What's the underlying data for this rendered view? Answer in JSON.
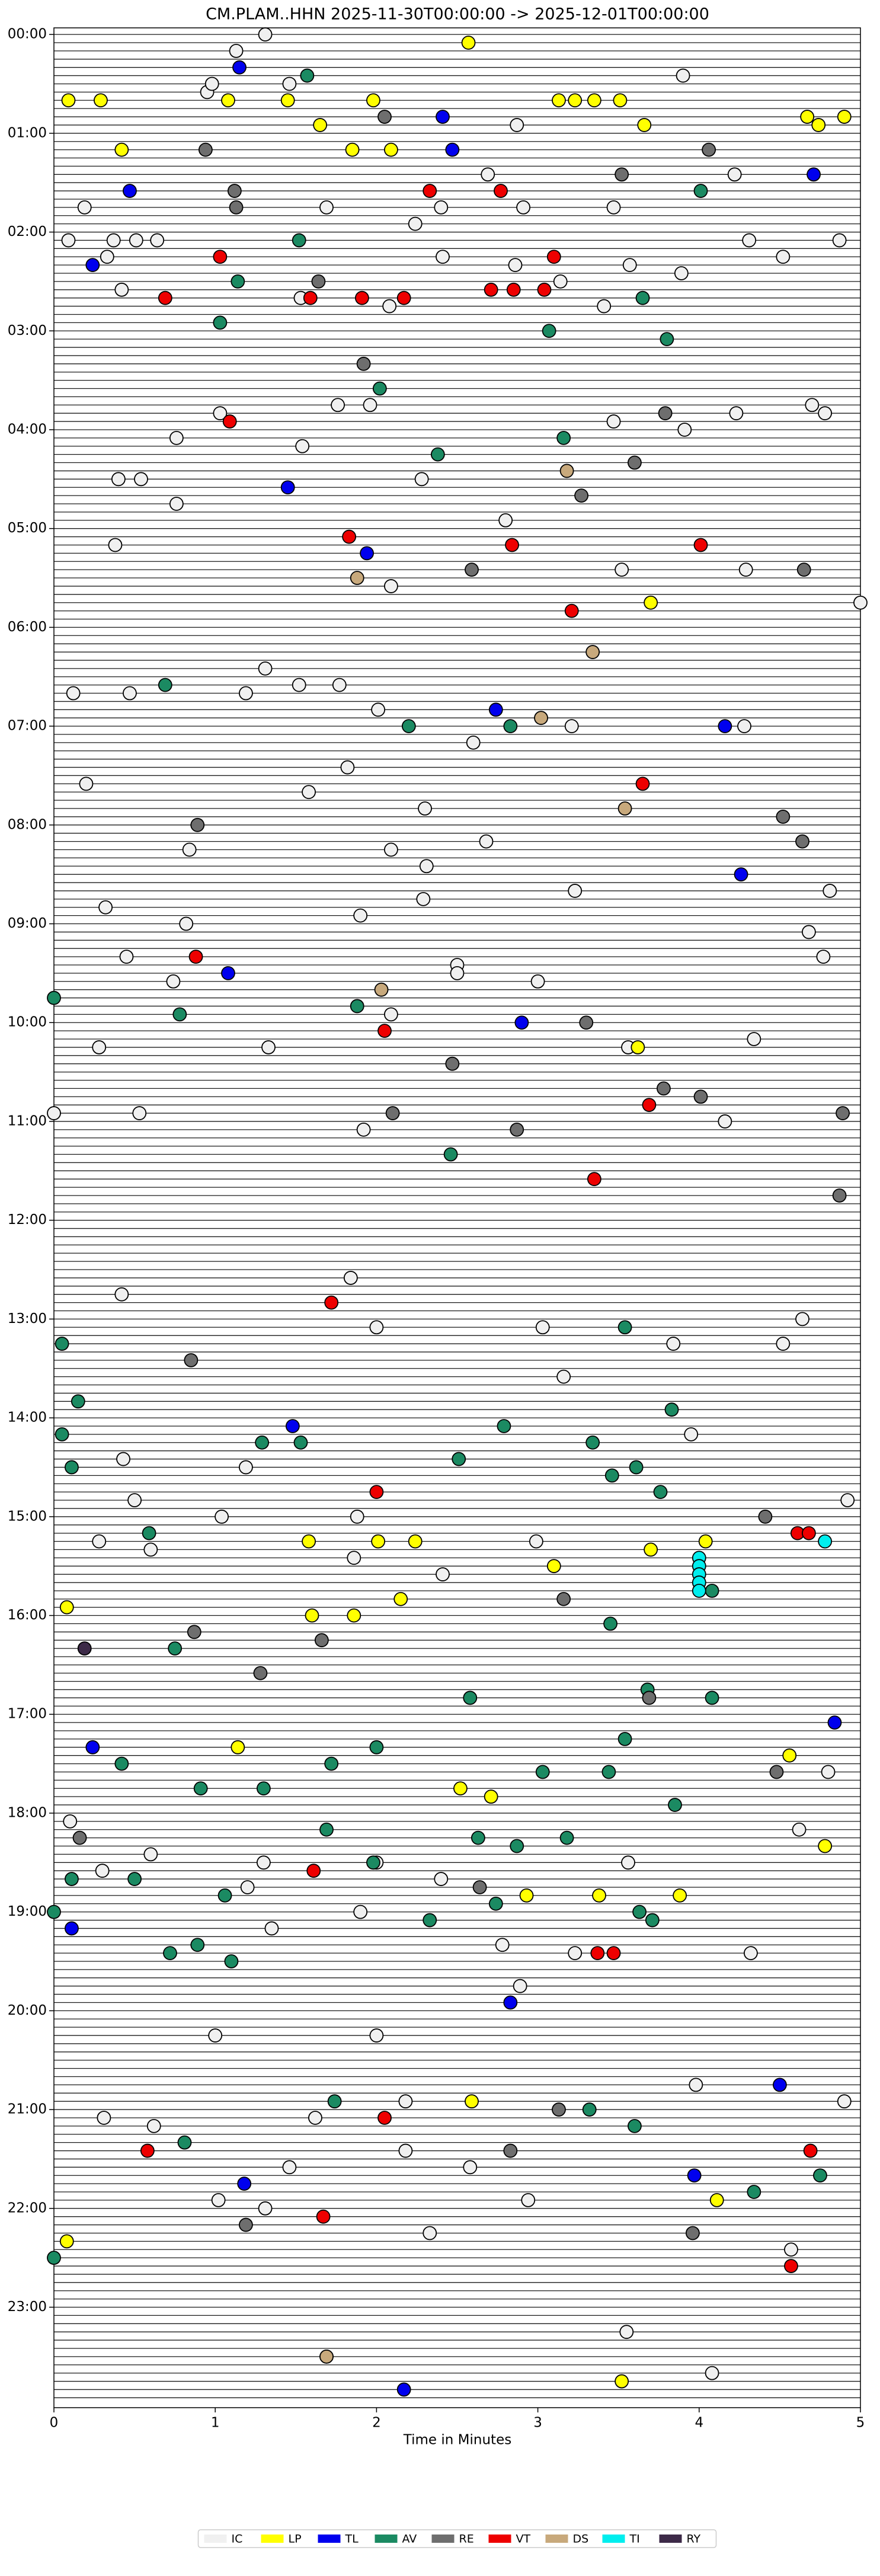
{
  "chart_data": {
    "type": "helicorder",
    "title": "CM.PLAM..HHN  2025-11-30T00:00:00 -> 2025-12-01T00:00:00",
    "xlabel": "Time in Minutes",
    "xlim": [
      0,
      5
    ],
    "xticks": [
      0,
      1,
      2,
      3,
      4,
      5
    ],
    "ylim": [
      -4,
      1441
    ],
    "yticks": [
      {
        "value": 0,
        "label": "00:00"
      },
      {
        "value": 60,
        "label": "01:00"
      },
      {
        "value": 120,
        "label": "02:00"
      },
      {
        "value": 180,
        "label": "03:00"
      },
      {
        "value": 240,
        "label": "04:00"
      },
      {
        "value": 300,
        "label": "05:00"
      },
      {
        "value": 360,
        "label": "06:00"
      },
      {
        "value": 420,
        "label": "07:00"
      },
      {
        "value": 480,
        "label": "08:00"
      },
      {
        "value": 540,
        "label": "09:00"
      },
      {
        "value": 600,
        "label": "10:00"
      },
      {
        "value": 660,
        "label": "11:00"
      },
      {
        "value": 720,
        "label": "12:00"
      },
      {
        "value": 780,
        "label": "13:00"
      },
      {
        "value": 840,
        "label": "14:00"
      },
      {
        "value": 900,
        "label": "15:00"
      },
      {
        "value": 960,
        "label": "16:00"
      },
      {
        "value": 1020,
        "label": "17:00"
      },
      {
        "value": 1080,
        "label": "18:00"
      },
      {
        "value": 1140,
        "label": "19:00"
      },
      {
        "value": 1200,
        "label": "20:00"
      },
      {
        "value": 1260,
        "label": "21:00"
      },
      {
        "value": 1320,
        "label": "22:00"
      },
      {
        "value": 1380,
        "label": "23:00"
      }
    ],
    "legend": "bottom",
    "series": [
      {
        "name": "IC",
        "color": "#f0f0f0",
        "x": [
          1.31,
          1.13,
          0.95,
          0.98,
          1.46,
          3.9,
          2.87,
          2.69,
          2.4,
          2.91,
          3.47,
          4.22,
          0.19,
          0.09,
          0.37,
          0.51,
          0.64,
          0.33,
          0.42,
          1.69,
          1.53,
          2.08,
          2.24,
          2.41,
          2.86,
          3.14,
          3.41,
          3.57,
          3.89,
          4.31,
          4.52,
          4.87,
          1.03,
          0.76,
          1.54,
          1.76,
          1.96,
          3.47,
          3.91,
          4.23,
          4.7,
          4.78,
          0.4,
          0.54,
          2.28,
          2.8,
          0.76,
          0.38,
          3.52,
          4.29,
          2.09,
          5.0,
          1.31,
          1.52,
          0.12,
          0.47,
          1.19,
          1.77,
          2.01,
          3.21,
          4.28,
          2.6,
          1.82,
          0.2,
          1.58,
          2.3,
          2.68,
          0.84,
          2.09,
          2.31,
          3.23,
          4.81,
          2.29,
          0.32,
          1.9,
          0.82,
          4.68,
          0.45,
          4.77,
          2.5,
          2.5,
          0.74,
          3.0,
          2.09,
          0.28,
          1.33,
          3.56,
          4.34,
          0,
          0.53,
          1.92,
          4.16,
          0.42,
          1.84,
          2.0,
          3.03,
          4.64,
          3.84,
          4.52,
          3.16,
          3.95,
          1.19,
          4.92,
          0.5,
          1.04,
          1.88,
          0.28,
          2.99,
          0.6,
          1.86,
          2.41,
          0.43,
          4.8,
          0.1,
          4.62,
          2.4,
          3.56,
          1.3,
          2.0,
          0.3,
          0.6,
          1.2,
          1.9,
          1.35,
          2.78,
          3.23,
          4.32,
          2.89,
          1.0,
          2.0,
          3.98,
          0.31,
          0.62,
          1.62,
          4.9,
          2.18,
          2.18,
          2.58,
          1.46,
          1.02,
          2.94,
          1.31,
          2.33,
          4.57,
          3.55,
          4.08
        ],
        "values": [
          0,
          10,
          35,
          30,
          30,
          25,
          55,
          85,
          105,
          105,
          105,
          85,
          105,
          125,
          125,
          125,
          125,
          135,
          155,
          105,
          160,
          165,
          115,
          135,
          140,
          150,
          165,
          140,
          145,
          125,
          135,
          125,
          230,
          245,
          250,
          225,
          225,
          235,
          240,
          230,
          225,
          230,
          270,
          270,
          270,
          295,
          285,
          310,
          325,
          325,
          335,
          345,
          385,
          395,
          400,
          400,
          400,
          395,
          410,
          420,
          420,
          430,
          445,
          455,
          460,
          470,
          490,
          495,
          495,
          505,
          520,
          520,
          525,
          530,
          535,
          540,
          545,
          560,
          560,
          565,
          570,
          575,
          575,
          595,
          615,
          615,
          615,
          610,
          655,
          655,
          665,
          660,
          765,
          755,
          785,
          785,
          780,
          795,
          795,
          815,
          850,
          870,
          890,
          890,
          900,
          900,
          915,
          915,
          920,
          925,
          935,
          865,
          1055,
          1085,
          1090,
          1120,
          1110,
          1110,
          1110,
          1115,
          1105,
          1125,
          1140,
          1150,
          1160,
          1165,
          1165,
          1185,
          1215,
          1215,
          1245,
          1265,
          1270,
          1265,
          1255,
          1255,
          1285,
          1295,
          1295,
          1315,
          1315,
          1320,
          1335,
          1345,
          1395,
          1420
        ]
      },
      {
        "name": "LP",
        "color": "#ffff00",
        "x": [
          0.09,
          0.29,
          1.08,
          1.45,
          2.57,
          1.65,
          1.98,
          3.13,
          3.23,
          3.35,
          3.51,
          3.66,
          4.67,
          4.74,
          4.9,
          0.42,
          1.85,
          2.09,
          3.7,
          3.62,
          4.04,
          2.01,
          2.24,
          1.58,
          3.1,
          3.7,
          0.08,
          1.6,
          1.86,
          2.15,
          1.14,
          4.56,
          2.52,
          2.71,
          4.78,
          2.93,
          3.38,
          3.88,
          2.59,
          4.11,
          0.08,
          1.69,
          3.52
        ],
        "values": [
          40,
          40,
          40,
          40,
          5,
          55,
          40,
          40,
          40,
          40,
          40,
          55,
          50,
          55,
          50,
          70,
          70,
          70,
          345,
          615,
          915,
          915,
          915,
          915,
          930,
          920,
          955,
          960,
          960,
          950,
          1040,
          1045,
          1065,
          1070,
          1100,
          1130,
          1130,
          1130,
          1255,
          1315,
          1340,
          1410,
          1425
        ]
      },
      {
        "name": "TL",
        "color": "#0000ee",
        "x": [
          1.15,
          2.41,
          2.47,
          0.47,
          4.71,
          0.24,
          1.45,
          1.94,
          2.74,
          4.16,
          4.26,
          1.08,
          2.9,
          1.48,
          0.24,
          4.84,
          0.11,
          2.83,
          4.5,
          3.97,
          1.18,
          2.17
        ],
        "values": [
          20,
          50,
          70,
          95,
          85,
          140,
          275,
          315,
          410,
          420,
          510,
          570,
          600,
          845,
          1040,
          1025,
          1150,
          1195,
          1245,
          1300,
          1305,
          1430
        ]
      },
      {
        "name": "AV",
        "color": "#1b8a62",
        "x": [
          1.57,
          4.01,
          1.52,
          1.14,
          1.03,
          3.65,
          3.8,
          3.07,
          2.02,
          2.38,
          3.16,
          0.69,
          2.2,
          2.83,
          0.0,
          0.78,
          1.88,
          2.46,
          0.05,
          3.54,
          0.15,
          3.83,
          0.05,
          1.29,
          1.53,
          2.79,
          3.34,
          0.11,
          2.51,
          3.46,
          3.61,
          3.76,
          0.59,
          4.08,
          3.45,
          0.75,
          2.58,
          3.68,
          4.08,
          3.54,
          0.42,
          1.72,
          2.0,
          0.91,
          1.3,
          3.03,
          3.44,
          3.85,
          1.69,
          2.63,
          2.87,
          3.18,
          0.11,
          0.5,
          1.06,
          1.98,
          0.0,
          2.33,
          2.74,
          3.63,
          3.71,
          0.72,
          0.89,
          1.1,
          1.74,
          3.32,
          0.81,
          3.6,
          4.34,
          4.75,
          0.0
        ],
        "values": [
          25,
          95,
          125,
          150,
          175,
          160,
          185,
          180,
          215,
          255,
          245,
          395,
          420,
          420,
          585,
          595,
          590,
          680,
          795,
          785,
          830,
          835,
          850,
          855,
          855,
          845,
          855,
          870,
          865,
          875,
          870,
          885,
          910,
          945,
          965,
          980,
          1010,
          1005,
          1010,
          1035,
          1050,
          1050,
          1040,
          1065,
          1065,
          1055,
          1055,
          1075,
          1090,
          1095,
          1100,
          1095,
          1120,
          1120,
          1130,
          1110,
          1140,
          1145,
          1135,
          1140,
          1145,
          1165,
          1160,
          1170,
          1255,
          1260,
          1280,
          1270,
          1310,
          1300,
          1350
        ]
      },
      {
        "name": "RE",
        "color": "#6e6e6e",
        "x": [
          2.05,
          0.94,
          1.12,
          1.13,
          4.06,
          3.52,
          1.64,
          1.92,
          3.79,
          3.6,
          3.27,
          2.59,
          4.65,
          0.89,
          4.52,
          4.64,
          3.3,
          2.47,
          3.78,
          2.1,
          4.01,
          2.87,
          4.89,
          4.87,
          0.85,
          4.41,
          3.16,
          0.87,
          1.66,
          1.28,
          3.69,
          4.48,
          0.16,
          2.64,
          2.83,
          3.13,
          1.19,
          3.96
        ],
        "values": [
          50,
          70,
          95,
          105,
          70,
          85,
          150,
          200,
          230,
          260,
          280,
          325,
          325,
          480,
          475,
          490,
          600,
          625,
          640,
          655,
          645,
          665,
          655,
          705,
          805,
          900,
          950,
          970,
          975,
          995,
          1010,
          1055,
          1095,
          1125,
          1285,
          1260,
          1330,
          1335
        ]
      },
      {
        "name": "VT",
        "color": "#ee0000",
        "x": [
          1.03,
          2.33,
          2.77,
          0.69,
          1.59,
          1.91,
          2.17,
          2.71,
          2.85,
          3.04,
          3.1,
          1.09,
          1.83,
          2.84,
          4.01,
          3.21,
          3.65,
          0.88,
          2.05,
          3.69,
          3.35,
          1.72,
          2.0,
          4.61,
          4.68,
          1.61,
          3.37,
          3.47,
          2.05,
          0.58,
          4.69,
          1.67,
          4.57
        ],
        "values": [
          135,
          95,
          95,
          160,
          160,
          160,
          160,
          155,
          155,
          155,
          135,
          235,
          305,
          310,
          310,
          350,
          455,
          560,
          605,
          650,
          695,
          770,
          885,
          910,
          910,
          1115,
          1165,
          1165,
          1265,
          1285,
          1285,
          1325,
          1355
        ]
      },
      {
        "name": "DS",
        "color": "#c8a97c",
        "x": [
          3.18,
          1.88,
          3.34,
          3.54,
          2.03,
          3.02,
          1.69
        ],
        "values": [
          265,
          330,
          375,
          470,
          580,
          415,
          1410
        ]
      },
      {
        "name": "TI",
        "color": "#00eeee",
        "x": [
          4.0,
          4.0,
          4.0,
          4.0,
          4.0,
          4.78
        ],
        "values": [
          925,
          930,
          935,
          940,
          945,
          915
        ]
      },
      {
        "name": "RY",
        "color": "#3d2a48",
        "x": [
          0.19
        ],
        "values": [
          980
        ]
      }
    ]
  }
}
